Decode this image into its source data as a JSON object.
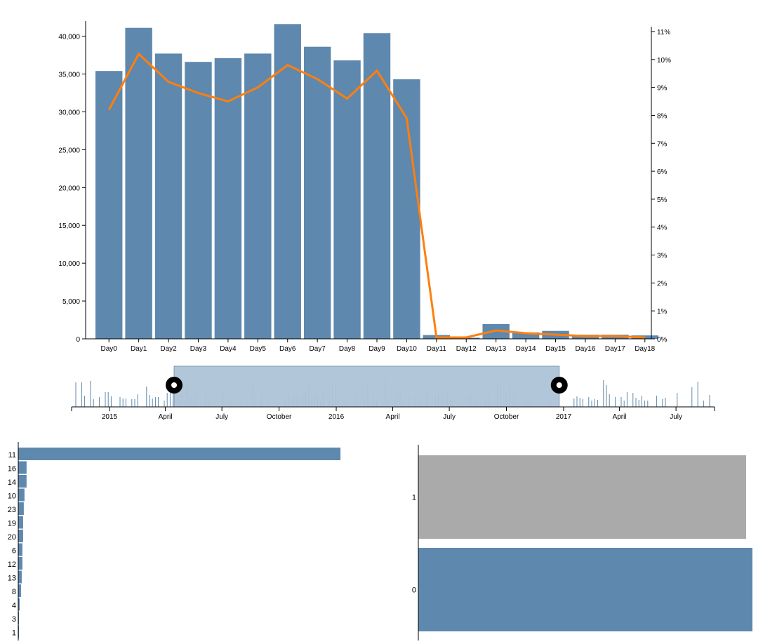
{
  "colors": {
    "bar": "#5e88ad",
    "line": "#ff7f0e",
    "brush": "#aec3d8",
    "grey": "#aaaaaa",
    "axis": "#000000"
  },
  "chart_data": [
    {
      "type": "bar",
      "categories": [
        "Day0",
        "Day1",
        "Day2",
        "Day3",
        "Day4",
        "Day5",
        "Day6",
        "Day7",
        "Day8",
        "Day9",
        "Day10",
        "Day11",
        "Day12",
        "Day13",
        "Day14",
        "Day15",
        "Day16",
        "Day17",
        "Day18"
      ],
      "series": [
        {
          "axis": "left",
          "type": "bar",
          "values": [
            35400,
            41100,
            37700,
            36600,
            37100,
            37700,
            41600,
            38600,
            36800,
            40400,
            34300,
            500,
            150,
            1950,
            850,
            1050,
            550,
            550,
            450
          ]
        },
        {
          "axis": "right",
          "type": "line",
          "values": [
            8.2,
            10.2,
            9.2,
            8.8,
            8.5,
            9.0,
            9.8,
            9.3,
            8.6,
            9.6,
            7.9,
            0.05,
            0.05,
            0.3,
            0.2,
            0.15,
            0.1,
            0.1,
            0.05
          ]
        }
      ],
      "ylim_left": [
        0,
        42000
      ],
      "ylim_right": [
        0,
        11
      ],
      "y_ticks_left": [
        "0",
        "5,000",
        "10,000",
        "15,000",
        "20,000",
        "25,000",
        "30,000",
        "35,000",
        "40,000"
      ],
      "y_ticks_right": [
        "0%",
        "1%",
        "2%",
        "3%",
        "4%",
        "5%",
        "6%",
        "7%",
        "8%",
        "9%",
        "10%",
        "11%"
      ]
    },
    {
      "type": "bar",
      "x_range": [
        "2014-11-01",
        "2017-09-01"
      ],
      "x_ticks": [
        "2015",
        "April",
        "July",
        "October",
        "2016",
        "April",
        "July",
        "October",
        "2017",
        "April",
        "July"
      ],
      "brush": [
        "2015-04-15",
        "2016-12-25"
      ],
      "grid": false
    },
    {
      "type": "bar",
      "orientation": "horizontal",
      "categories": [
        "11",
        "16",
        "14",
        "10",
        "23",
        "19",
        "20",
        "6",
        "12",
        "13",
        "8",
        "4",
        "3",
        "1"
      ],
      "values": [
        465,
        12,
        12,
        9,
        8,
        7,
        7,
        6,
        6,
        5,
        4,
        2,
        1,
        1
      ],
      "xlim": [
        0,
        470
      ]
    },
    {
      "type": "bar",
      "orientation": "horizontal",
      "categories": [
        "1",
        "0"
      ],
      "values": [
        467,
        476
      ],
      "xlim": [
        0,
        476
      ]
    }
  ]
}
